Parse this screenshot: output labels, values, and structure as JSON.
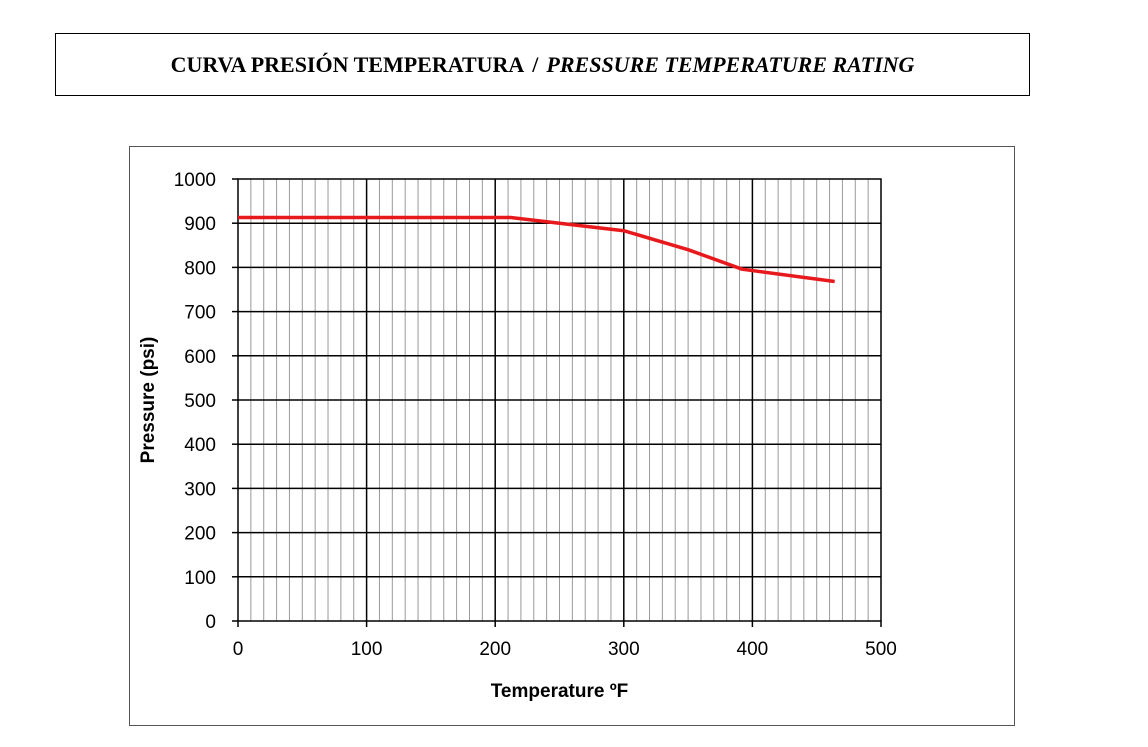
{
  "header": {
    "title_es": "CURVA PRESIÓN TEMPERATURA",
    "separator": "/",
    "title_en": "PRESSURE TEMPERATURE RATING"
  },
  "colors": {
    "series": "#e8191c",
    "major_grid": "#000000",
    "minor_grid": "#9a9a9a"
  },
  "chart_data": {
    "type": "line",
    "title": "",
    "xlabel": "Temperature ºF",
    "ylabel": "Pressure (psi)",
    "xlim": [
      0,
      500
    ],
    "ylim": [
      0,
      1000
    ],
    "xticks": [
      0,
      100,
      200,
      300,
      400,
      500
    ],
    "yticks": [
      0,
      100,
      200,
      300,
      400,
      500,
      600,
      700,
      800,
      900,
      1000
    ],
    "grid": true,
    "legend": "none",
    "series": [
      {
        "x": [
          0,
          212,
          250,
          300,
          350,
          392,
          464
        ],
        "y": [
          913,
          913,
          900,
          883,
          840,
          796,
          768
        ]
      }
    ]
  }
}
